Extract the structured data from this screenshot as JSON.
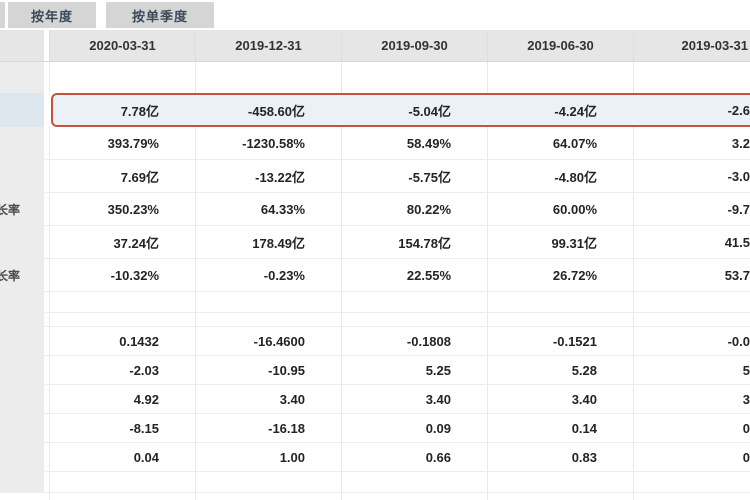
{
  "tabs": {
    "by_year": "按年度",
    "by_quarter": "按单季度"
  },
  "colors": {
    "highlight_border": "#c5523e",
    "highlight_bg": "#eaf2f8",
    "header_bg": "#e6e6e6",
    "tab_bg": "#d5d5d5",
    "label_col_bg": "#ececec"
  },
  "table": {
    "columns": [
      "2020-03-31",
      "2019-12-31",
      "2019-09-30",
      "2019-06-30",
      "2019-03-31"
    ],
    "rows": [
      {
        "kind": "sp31"
      },
      {
        "kind": "hl",
        "highlight": true,
        "values": [
          "7.78亿",
          "-458.60亿",
          "-5.04亿",
          "-4.24亿",
          "-2.6"
        ]
      },
      {
        "kind": "tall",
        "values": [
          "393.79%",
          "-1230.58%",
          "58.49%",
          "64.07%",
          "3.2"
        ]
      },
      {
        "kind": "tall",
        "values": [
          "7.69亿",
          "-13.22亿",
          "-5.75亿",
          "-4.80亿",
          "-3.0"
        ]
      },
      {
        "kind": "tall",
        "label": "长率",
        "frag": "wide",
        "values": [
          "350.23%",
          "64.33%",
          "80.22%",
          "60.00%",
          "-9.7"
        ]
      },
      {
        "kind": "tall",
        "values": [
          "37.24亿",
          "178.49亿",
          "154.78亿",
          "99.31亿",
          "41.5"
        ]
      },
      {
        "kind": "tall",
        "label": "长率",
        "frag": "wide",
        "values": [
          "-10.32%",
          "-0.23%",
          "22.55%",
          "26.72%",
          "53.7"
        ]
      },
      {
        "kind": "sp20"
      },
      {
        "kind": "sp13"
      },
      {
        "kind": "short",
        "values": [
          "0.1432",
          "-16.4600",
          "-0.1808",
          "-0.1521",
          "-0.0"
        ]
      },
      {
        "kind": "short",
        "values": [
          "-2.03",
          "-10.95",
          "5.25",
          "5.28",
          "5"
        ]
      },
      {
        "kind": "short",
        "label": "）",
        "frag": "narrow",
        "values": [
          "4.92",
          "3.40",
          "3.40",
          "3.40",
          "3"
        ]
      },
      {
        "kind": "short",
        "label": "）",
        "frag": "narrow",
        "values": [
          "-8.15",
          "-16.18",
          "0.09",
          "0.14",
          "0"
        ]
      },
      {
        "kind": "short",
        "label": "）",
        "frag": "narrow",
        "values": [
          "0.04",
          "1.00",
          "0.66",
          "0.83",
          "0"
        ]
      },
      {
        "kind": "sp20"
      },
      {
        "kind": "sp18",
        "label_white": true
      }
    ]
  }
}
